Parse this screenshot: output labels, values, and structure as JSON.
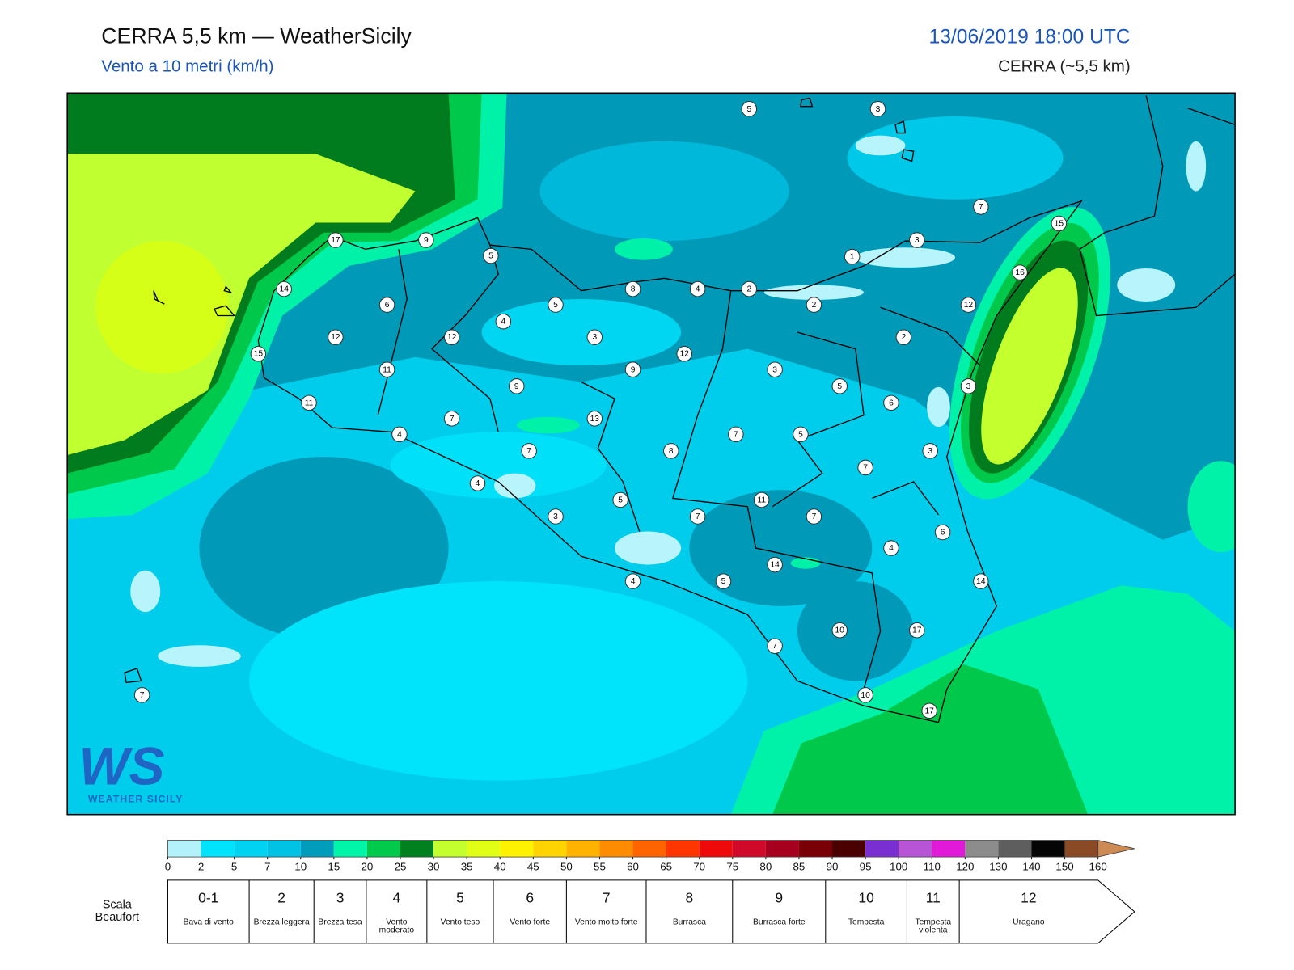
{
  "header": {
    "title": "CERRA 5,5 km — WeatherSicily",
    "subtitle": "Vento a 10 metri (km/h)",
    "datetime": "13/06/2019 18:00 UTC",
    "model": "CERRA (~5,5 km)"
  },
  "stations": [
    5,
    3,
    7,
    15,
    3,
    1,
    16,
    17,
    9,
    5,
    14,
    6,
    5,
    8,
    4,
    2,
    2,
    12,
    4,
    12,
    12,
    3,
    2,
    15,
    11,
    9,
    12,
    3,
    9,
    5,
    11,
    6,
    3,
    7,
    13,
    4,
    7,
    5,
    7,
    8,
    3,
    7,
    4,
    5,
    11,
    3,
    7,
    7,
    6,
    4,
    14,
    4,
    5,
    14,
    10,
    17,
    7,
    10,
    17,
    7
  ],
  "colorbar": {
    "ticks": [
      0,
      2,
      5,
      7,
      10,
      15,
      20,
      25,
      30,
      35,
      40,
      45,
      50,
      55,
      60,
      65,
      70,
      75,
      80,
      85,
      90,
      95,
      100,
      110,
      120,
      130,
      140,
      150,
      160
    ],
    "colors": [
      "#b4f2fb",
      "#00e3fc",
      "#00d3f2",
      "#00c2e4",
      "#009cbb",
      "#00f5a8",
      "#00c94c",
      "#00801f",
      "#c4ff2e",
      "#e0ff14",
      "#fff200",
      "#ffd400",
      "#ffb300",
      "#ff8c00",
      "#ff6400",
      "#ff3600",
      "#ee0a0a",
      "#d0082a",
      "#a6001e",
      "#7a0008",
      "#4a0000",
      "#7a2fd2",
      "#b855d6",
      "#e01ad8",
      "#8c8c8c",
      "#5e5e5e",
      "#050505",
      "#8a4a26",
      "#cd8a52"
    ],
    "extend_color": "#cd8a52"
  },
  "beaufort": {
    "label": "Scala Beaufort",
    "numbers": [
      "0-1",
      2,
      3,
      4,
      5,
      6,
      7,
      8,
      9,
      10,
      11,
      12
    ],
    "names": [
      "Bava di vento",
      "Brezza leggera",
      "Brezza tesa",
      "Vento moderato",
      "Vento teso",
      "Vento forte",
      "Vento molto forte",
      "Burrasca",
      "Burrasca forte",
      "Tempesta",
      "Tempesta violenta",
      "Uragano"
    ]
  },
  "logo": {
    "mark": "WS",
    "name": "WEATHER SICILY"
  }
}
